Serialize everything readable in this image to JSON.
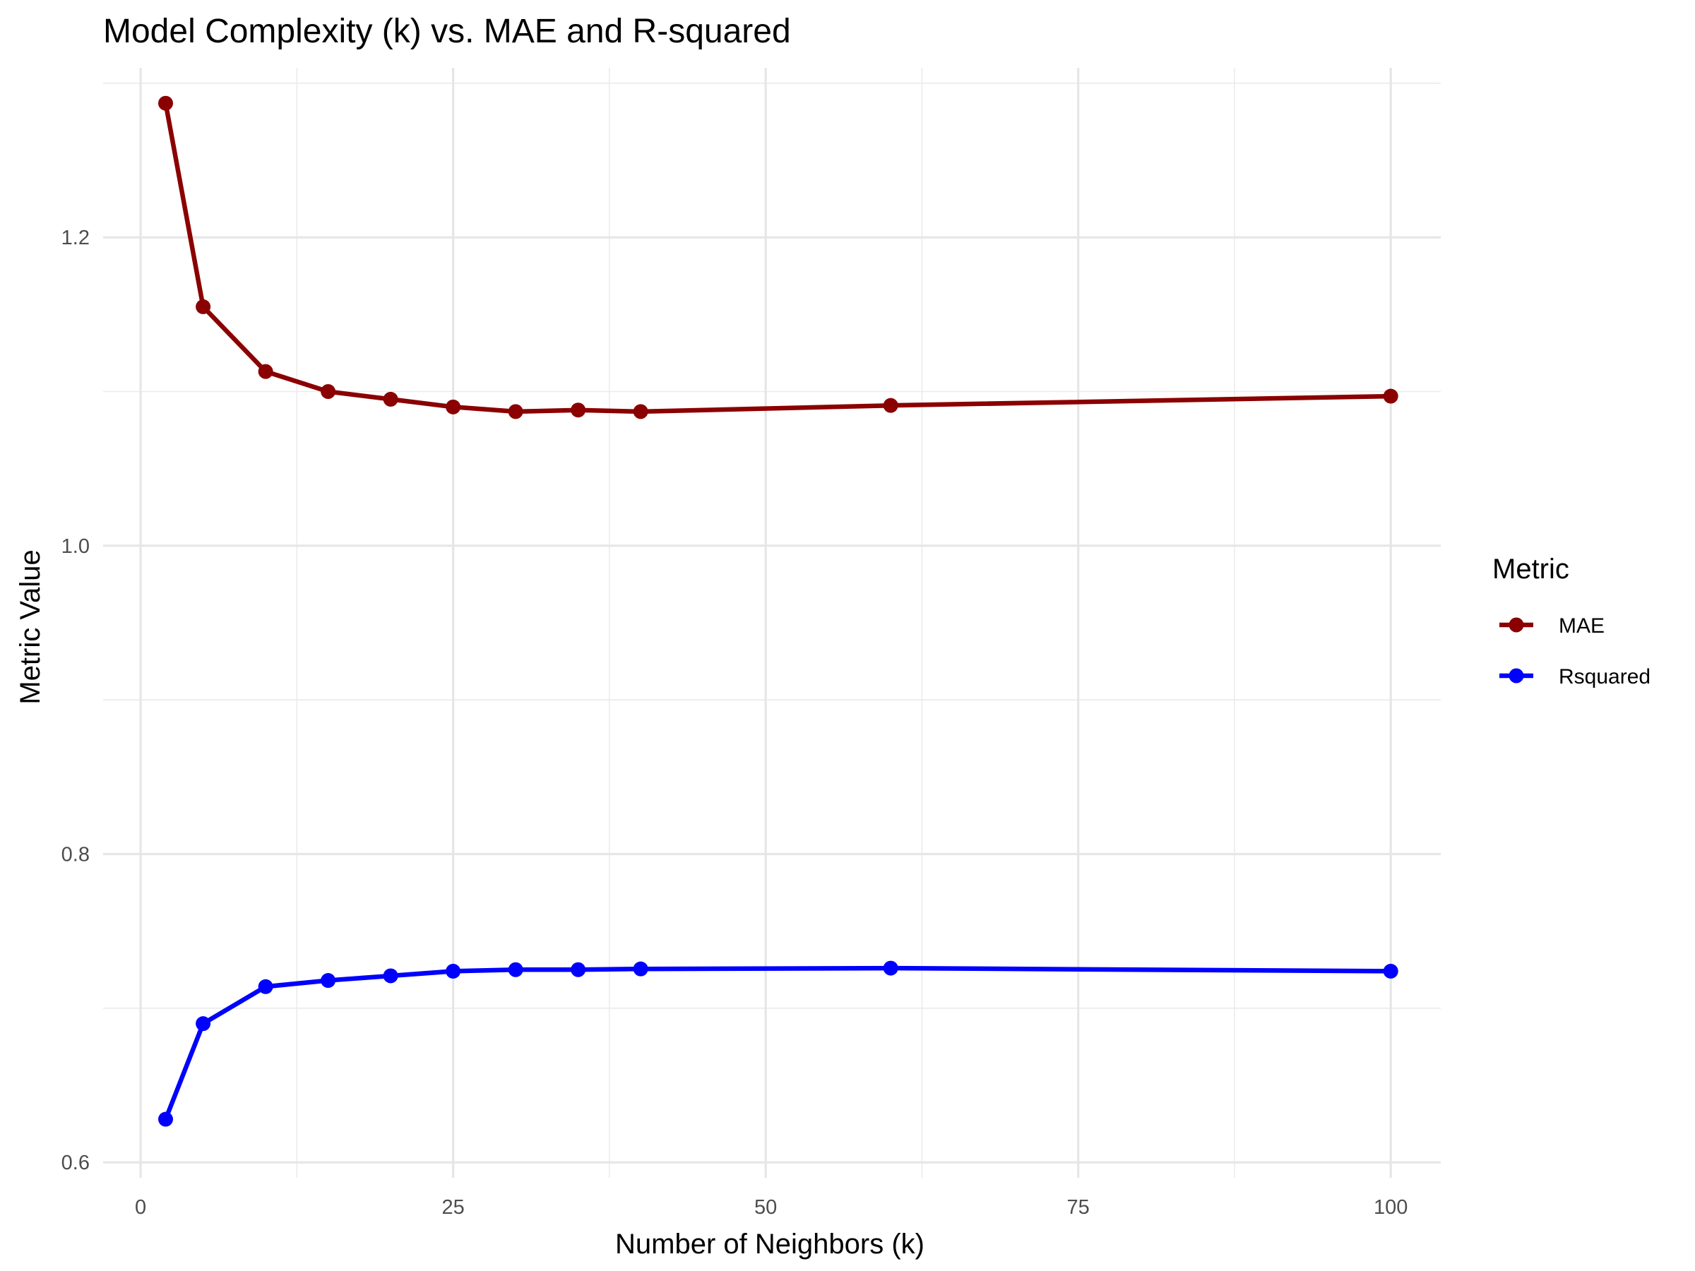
{
  "chart_data": {
    "type": "line",
    "title": "Model Complexity (k) vs. MAE and R-squared",
    "xlabel": "Number of Neighbors (k)",
    "ylabel": "Metric Value",
    "xlim": [
      -3,
      104
    ],
    "ylim": [
      0.59,
      1.31
    ],
    "x_ticks": [
      0,
      25,
      50,
      75,
      100
    ],
    "x_tick_labels": [
      "0",
      "25",
      "50",
      "75",
      "100"
    ],
    "y_ticks": [
      0.6,
      0.8,
      1.0,
      1.2
    ],
    "y_tick_labels": [
      "0.6",
      "0.8",
      "1.0",
      "1.2"
    ],
    "x_minor": [
      12.5,
      37.5,
      62.5,
      87.5
    ],
    "y_minor": [
      0.7,
      0.9,
      1.1,
      1.3
    ],
    "grid": true,
    "legend": {
      "title": "Metric",
      "position": "right"
    },
    "x": [
      2,
      5,
      10,
      15,
      20,
      25,
      30,
      35,
      40,
      60,
      100
    ],
    "series": [
      {
        "name": "MAE",
        "color": "#8b0000",
        "values": [
          1.287,
          1.155,
          1.113,
          1.1,
          1.095,
          1.09,
          1.087,
          1.088,
          1.087,
          1.091,
          1.097
        ]
      },
      {
        "name": "Rsquared",
        "color": "#0000ff",
        "values": [
          0.628,
          0.69,
          0.714,
          0.718,
          0.721,
          0.724,
          0.725,
          0.725,
          0.7255,
          0.726,
          0.724
        ]
      }
    ]
  }
}
